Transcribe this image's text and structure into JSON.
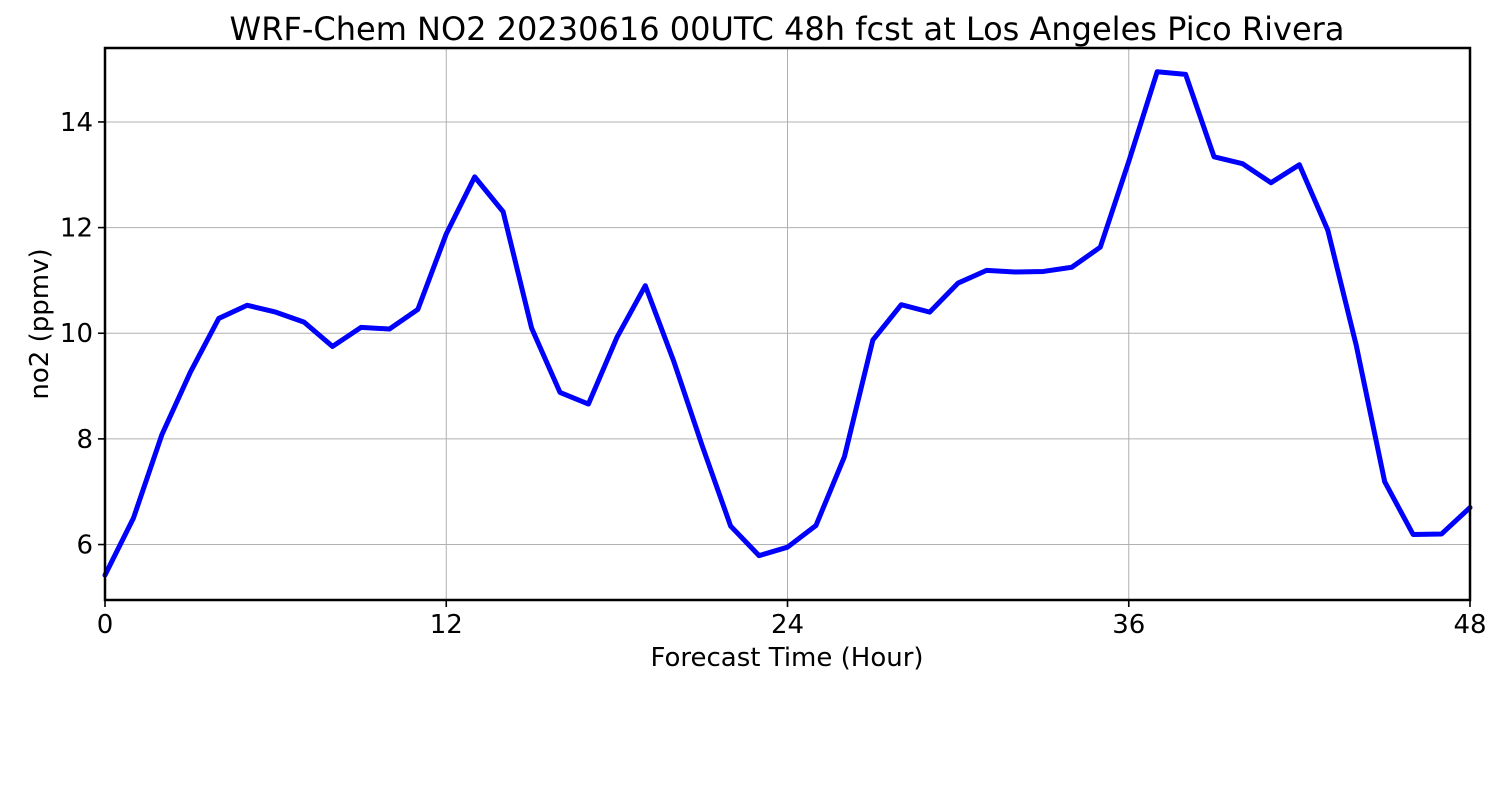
{
  "chart_data": {
    "type": "line",
    "title": "WRF-Chem NO2  20230616 00UTC 48h fcst at Los Angeles Pico Rivera",
    "xlabel": "Forecast Time (Hour)",
    "ylabel": "no2  (ppmv)",
    "xlim": [
      0,
      48
    ],
    "ylim": [
      4.95,
      15.4
    ],
    "xticks": [
      0,
      12,
      24,
      36,
      48
    ],
    "yticks": [
      6,
      8,
      10,
      12,
      14
    ],
    "grid": true,
    "x": [
      0,
      1,
      2,
      3,
      4,
      5,
      6,
      7,
      8,
      9,
      10,
      11,
      12,
      13,
      14,
      15,
      16,
      17,
      18,
      19,
      20,
      21,
      22,
      23,
      24,
      25,
      26,
      27,
      28,
      29,
      30,
      31,
      32,
      33,
      34,
      35,
      36,
      37,
      38,
      39,
      40,
      41,
      42,
      43,
      44,
      45,
      46,
      47,
      48
    ],
    "series": [
      {
        "color": "#0000ff",
        "values": [
          5.42,
          6.5,
          8.08,
          9.26,
          10.28,
          10.53,
          10.4,
          10.21,
          9.75,
          10.11,
          10.08,
          10.45,
          11.88,
          12.96,
          12.3,
          10.1,
          8.88,
          8.66,
          9.92,
          10.9,
          9.47,
          7.87,
          6.35,
          5.79,
          5.95,
          6.36,
          7.66,
          9.87,
          10.54,
          10.4,
          10.95,
          11.19,
          11.16,
          11.17,
          11.25,
          11.63,
          13.25,
          14.95,
          14.9,
          13.34,
          13.21,
          12.85,
          13.19,
          11.95,
          9.77,
          7.19,
          6.19,
          6.2,
          6.7
        ]
      }
    ]
  }
}
